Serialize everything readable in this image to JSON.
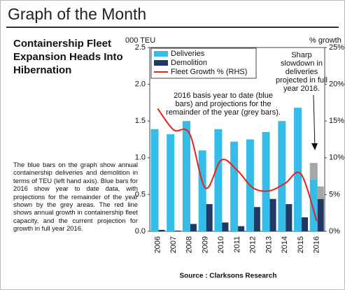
{
  "header": {
    "title": "Graph of the Month"
  },
  "heading": "Containership Fleet Expansion Heads Into Hibernation",
  "paragraph": "The blue bars on the graph show annual containership deliveries and demolition in terms of TEU (left hand axis). Blue bars for 2016 show year to date data, with projections for the remainder of the year shown by the grey areas. The red line shows annual growth in containership fleet capacity, and the current projection for growth in full year 2016.",
  "chart_data": {
    "type": "bar",
    "ylabel": "000 TEU",
    "y2label": "% growth",
    "categories": [
      "2006",
      "2007",
      "2008",
      "2009",
      "2010",
      "2011",
      "2012",
      "2013",
      "2014",
      "2015",
      "2016"
    ],
    "series": [
      {
        "name": "Deliveries",
        "color": "#33bde8",
        "values": [
          1.39,
          1.32,
          1.5,
          1.1,
          1.39,
          1.22,
          1.25,
          1.35,
          1.5,
          1.68,
          0.71
        ]
      },
      {
        "name": "Demolition",
        "color": "#1f3864",
        "values": [
          0.02,
          0.01,
          0.1,
          0.37,
          0.12,
          0.07,
          0.33,
          0.44,
          0.37,
          0.19,
          0.44
        ]
      },
      {
        "name": "Fleet Growth % (RHS)",
        "color": "#e8211b",
        "type": "line",
        "axis": "y2",
        "values": [
          16.7,
          13.8,
          13.3,
          5.9,
          9.7,
          8.3,
          5.9,
          5.5,
          6.5,
          7.8,
          1.4
        ]
      },
      {
        "color": "#a6a6a6",
        "stack": 0,
        "values": [
          null,
          null,
          null,
          null,
          null,
          null,
          null,
          null,
          null,
          null,
          0.22
        ]
      },
      {
        "color": "#a6a6a6",
        "stack": 1,
        "values": [
          null,
          null,
          null,
          null,
          null,
          null,
          null,
          null,
          null,
          null,
          0.17
        ]
      }
    ],
    "ylim": [
      0,
      2.5
    ],
    "yticks": [
      {
        "value": 0,
        "label": "0.0"
      },
      0.5,
      {
        "value": 1,
        "label": "1.0"
      },
      1.5,
      {
        "value": 2,
        "label": "2.0"
      },
      2.5
    ],
    "y2lim": [
      0,
      25
    ],
    "y2ticks": [
      {
        "value": 0,
        "label": "0%"
      },
      {
        "value": 5,
        "label": "5%"
      },
      {
        "value": 10,
        "label": "10%"
      },
      {
        "value": 15,
        "label": "15%"
      },
      {
        "value": 20,
        "label": "20%"
      },
      {
        "value": 25,
        "label": "25%"
      }
    ],
    "legend": "upper left",
    "annotations": [
      {
        "lines": [
          "2016 basis year to date (blue",
          "bars) and projections for the",
          "remainder of the year (grey bars)."
        ]
      },
      {
        "lines": [
          "Sharp",
          "slowdown in",
          "deliveries",
          "projected in full",
          "year 2016."
        ]
      }
    ],
    "source": "Source : Clarksons Research"
  }
}
